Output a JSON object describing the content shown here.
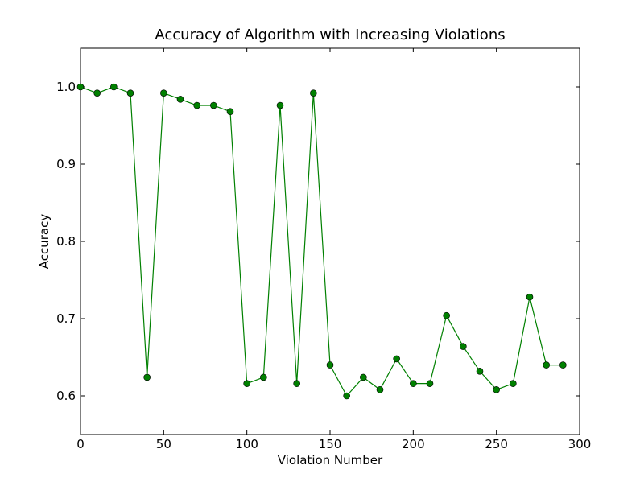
{
  "chart_data": {
    "type": "line",
    "title": "Accuracy of Algorithm with Increasing Violations",
    "xlabel": "Violation Number",
    "ylabel": "Accuracy",
    "xlim": [
      0,
      300
    ],
    "ylim": [
      0.55,
      1.05
    ],
    "x_ticks": [
      0,
      50,
      100,
      150,
      200,
      250,
      300
    ],
    "x_tick_labels": [
      "0",
      "50",
      "100",
      "150",
      "200",
      "250",
      "300"
    ],
    "y_ticks": [
      0.6,
      0.7,
      0.8,
      0.9,
      1.0
    ],
    "y_tick_labels": [
      "0.6",
      "0.7",
      "0.8",
      "0.9",
      "1.0"
    ],
    "grid": false,
    "legend": "none",
    "series": [
      {
        "color": "#008000",
        "marker": "circle",
        "x": [
          0,
          10,
          20,
          30,
          40,
          50,
          60,
          70,
          80,
          90,
          100,
          110,
          120,
          130,
          140,
          150,
          160,
          170,
          180,
          190,
          200,
          210,
          220,
          230,
          240,
          250,
          260,
          270,
          280,
          290
        ],
        "y": [
          1.0,
          0.992,
          1.0,
          0.992,
          0.624,
          0.992,
          0.984,
          0.976,
          0.976,
          0.968,
          0.616,
          0.624,
          0.976,
          0.616,
          0.992,
          0.64,
          0.6,
          0.624,
          0.608,
          0.648,
          0.616,
          0.616,
          0.704,
          0.664,
          0.632,
          0.608,
          0.616,
          0.728,
          0.64,
          0.64
        ]
      }
    ]
  }
}
